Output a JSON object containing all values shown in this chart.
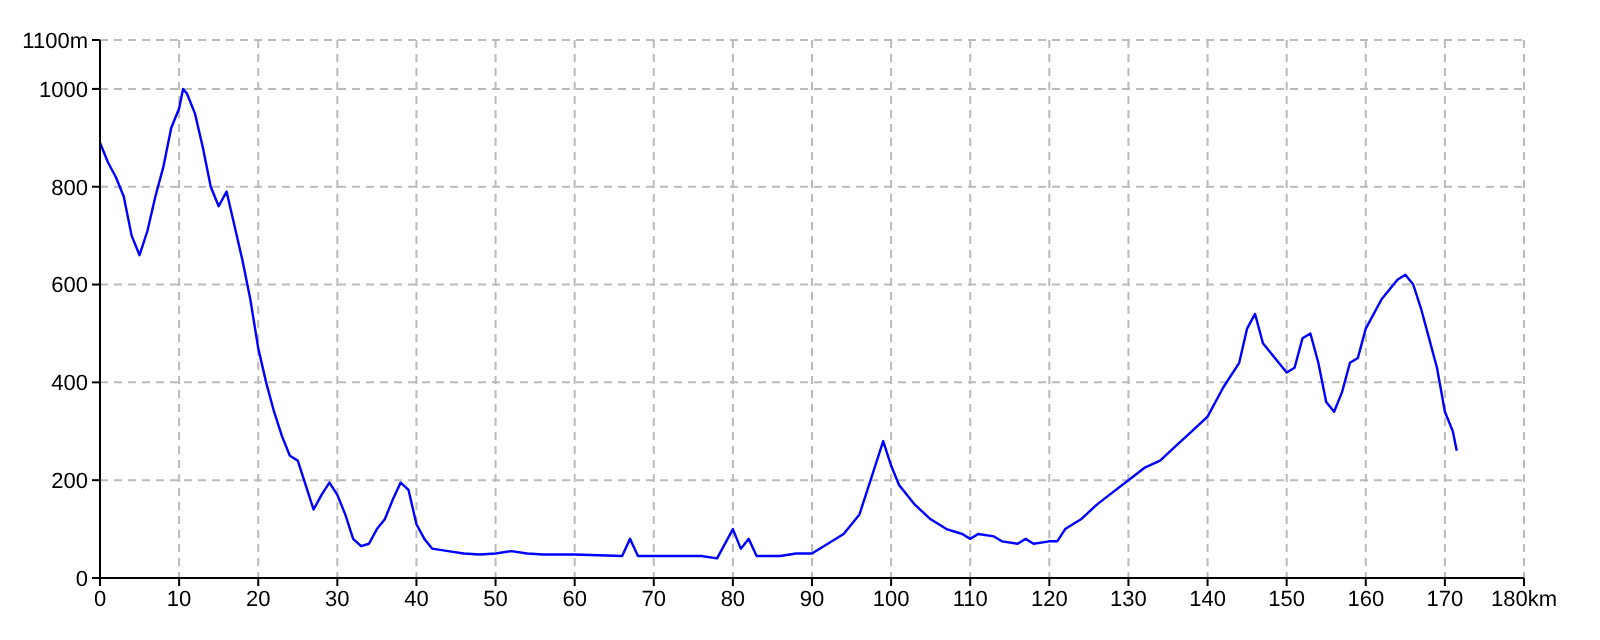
{
  "chart_data": {
    "type": "line",
    "x": [
      0,
      1,
      2,
      3,
      4,
      5,
      6,
      7,
      8,
      9,
      10,
      10.5,
      11,
      12,
      13,
      14,
      15,
      16,
      17,
      18,
      19,
      20,
      21,
      22,
      23,
      24,
      25,
      26,
      27,
      28,
      29,
      30,
      31,
      32,
      33,
      34,
      35,
      36,
      37,
      38,
      39,
      40,
      41,
      42,
      44,
      46,
      48,
      50,
      52,
      54,
      56,
      60,
      64,
      66,
      67,
      68,
      72,
      76,
      78,
      80,
      81,
      82,
      83,
      86,
      88,
      90,
      92,
      94,
      96,
      98,
      99,
      100,
      101,
      103,
      105,
      107,
      109,
      110,
      111,
      113,
      114,
      116,
      117,
      118,
      120,
      121,
      122,
      124,
      126,
      128,
      130,
      132,
      134,
      136,
      138,
      140,
      142,
      144,
      145,
      146,
      147,
      149,
      150,
      151,
      152,
      153,
      154,
      155,
      156,
      157,
      158,
      159,
      160,
      162,
      164,
      165,
      166,
      167,
      168,
      169,
      170,
      171,
      171.5
    ],
    "series": [
      {
        "color": "#0000ff",
        "values": [
          890,
          850,
          820,
          780,
          700,
          660,
          710,
          780,
          840,
          920,
          960,
          1000,
          990,
          950,
          880,
          800,
          760,
          790,
          720,
          650,
          570,
          470,
          400,
          340,
          290,
          250,
          240,
          190,
          140,
          170,
          195,
          170,
          130,
          80,
          65,
          70,
          100,
          120,
          160,
          195,
          180,
          110,
          80,
          60,
          55,
          50,
          48,
          50,
          55,
          50,
          48,
          48,
          46,
          45,
          80,
          45,
          45,
          45,
          40,
          100,
          60,
          80,
          45,
          45,
          50,
          50,
          70,
          90,
          130,
          230,
          280,
          230,
          190,
          150,
          120,
          100,
          90,
          80,
          90,
          85,
          75,
          70,
          80,
          70,
          75,
          75,
          100,
          120,
          150,
          175,
          200,
          225,
          240,
          270,
          300,
          330,
          390,
          440,
          510,
          540,
          480,
          440,
          420,
          430,
          490,
          500,
          440,
          360,
          340,
          380,
          440,
          450,
          510,
          570,
          610,
          620,
          600,
          550,
          490,
          430,
          340,
          300,
          260
        ]
      }
    ],
    "xlim": [
      0,
      180
    ],
    "xticks": [
      0,
      10,
      20,
      30,
      40,
      50,
      60,
      70,
      80,
      90,
      100,
      110,
      120,
      130,
      140,
      150,
      160,
      170,
      {
        "value": 180,
        "label": "180km"
      }
    ],
    "ylim": [
      0,
      1100
    ],
    "yticks": [
      0,
      200,
      400,
      600,
      800,
      1000,
      {
        "value": 1100,
        "label": "1100m"
      }
    ],
    "grid": true,
    "marker": "none",
    "line_style": "solid",
    "legend": false
  }
}
